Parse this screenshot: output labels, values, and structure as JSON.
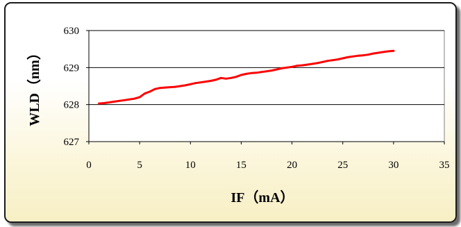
{
  "chart_data": {
    "type": "line",
    "title": "",
    "xlabel": "IF（mA）",
    "ylabel": "WLD（nm）",
    "xlim": [
      0,
      35
    ],
    "ylim": [
      627,
      630
    ],
    "x_ticks": [
      0,
      5,
      10,
      15,
      20,
      25,
      30,
      35
    ],
    "y_ticks": [
      627,
      628,
      629,
      630
    ],
    "grid": "horizontal",
    "legend": "none",
    "line_color": "#ff0000",
    "series": [
      {
        "x": [
          1.0,
          1.5,
          2.0,
          2.5,
          3.0,
          3.5,
          4.0,
          4.5,
          5.0,
          5.5,
          6.0,
          6.5,
          7.0,
          7.5,
          8.0,
          8.5,
          9.0,
          9.5,
          10.0,
          10.5,
          11.0,
          11.5,
          12.0,
          12.5,
          13.0,
          13.5,
          14.0,
          14.5,
          15.0,
          15.5,
          16.0,
          16.5,
          17.0,
          17.5,
          18.0,
          18.5,
          19.0,
          19.5,
          20.0,
          20.5,
          21.0,
          21.5,
          22.0,
          22.5,
          23.0,
          23.5,
          24.0,
          24.5,
          25.0,
          25.5,
          26.0,
          26.5,
          27.0,
          27.5,
          28.0,
          28.5,
          29.0,
          29.5,
          30.0
        ],
        "y": [
          628.03,
          628.04,
          628.06,
          628.08,
          628.1,
          628.12,
          628.14,
          628.16,
          628.2,
          628.3,
          628.35,
          628.42,
          628.45,
          628.46,
          628.47,
          628.48,
          628.5,
          628.52,
          628.55,
          628.58,
          628.6,
          628.62,
          628.64,
          628.67,
          628.72,
          628.7,
          628.72,
          628.75,
          628.8,
          628.83,
          628.85,
          628.86,
          628.88,
          628.9,
          628.92,
          628.95,
          628.98,
          629.0,
          629.02,
          629.05,
          629.06,
          629.08,
          629.1,
          629.12,
          629.15,
          629.18,
          629.2,
          629.22,
          629.25,
          629.28,
          629.3,
          629.32,
          629.33,
          629.35,
          629.38,
          629.4,
          629.42,
          629.44,
          629.45
        ]
      }
    ]
  }
}
